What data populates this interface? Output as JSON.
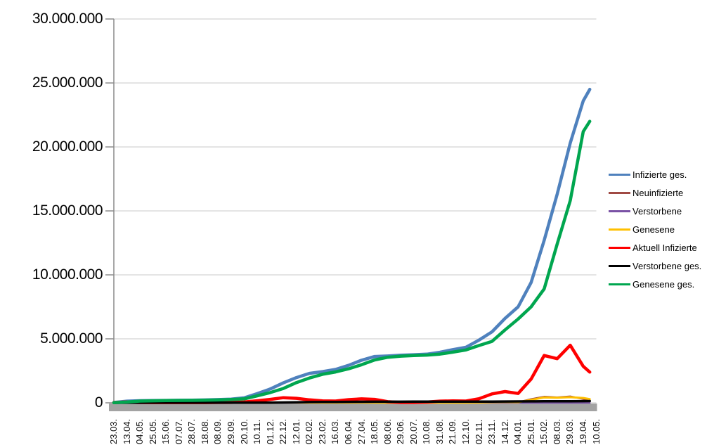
{
  "chart_data": {
    "type": "line",
    "title": "",
    "xlabel": "",
    "ylabel": "",
    "ylim": [
      0,
      30000000
    ],
    "grid": "horizontal-only",
    "legend_position": "right-middle",
    "data_end_index": 36.5,
    "y_ticks": [
      {
        "value": 0,
        "label": "0"
      },
      {
        "value": 5000000,
        "label": "5.000.000"
      },
      {
        "value": 10000000,
        "label": "10.000.000"
      },
      {
        "value": 15000000,
        "label": "15.000.000"
      },
      {
        "value": 20000000,
        "label": "20.000.000"
      },
      {
        "value": 25000000,
        "label": "25.000.000"
      },
      {
        "value": 30000000,
        "label": "30.000.000"
      }
    ],
    "categories": [
      "23.03.",
      "13.04.",
      "04.05.",
      "25.05.",
      "15.06.",
      "07.07.",
      "28.07.",
      "18.08.",
      "08.09.",
      "29.09.",
      "20.10.",
      "10.11.",
      "01.12.",
      "22.12.",
      "12.01.",
      "02.02.",
      "23.02.",
      "16.03.",
      "06.04.",
      "27.04.",
      "18.05.",
      "08.06.",
      "29.06.",
      "20.07.",
      "10.08.",
      "31.08.",
      "21.09.",
      "12.10.",
      "02.11.",
      "23.11.",
      "14.12.",
      "04.01.",
      "25.01.",
      "15.02.",
      "08.03.",
      "29.03.",
      "19.04.",
      "10.05."
    ],
    "series": [
      {
        "name": "Infizierte ges.",
        "color": "#4F81BD",
        "width": 4.5,
        "values": [
          30000,
          130000,
          163000,
          180000,
          188000,
          197000,
          207000,
          226000,
          255000,
          292000,
          390000,
          720000,
          1080000,
          1560000,
          1970000,
          2300000,
          2440000,
          2610000,
          2930000,
          3330000,
          3620000,
          3660000,
          3720000,
          3760000,
          3800000,
          3950000,
          4160000,
          4340000,
          4900000,
          5550000,
          6600000,
          7500000,
          9400000,
          12700000,
          16300000,
          20300000,
          23600000,
          24500000
        ]
      },
      {
        "name": "Neuinfizierte",
        "color": "#A04A44",
        "width": 2.5,
        "values": [
          4000,
          5000,
          1800,
          700,
          400,
          400,
          600,
          1200,
          1800,
          2800,
          8000,
          20000,
          20000,
          28000,
          20000,
          11000,
          8000,
          13000,
          22000,
          21000,
          9000,
          3000,
          1200,
          2200,
          6000,
          11000,
          10000,
          9000,
          32000,
          62000,
          55000,
          45000,
          290000,
          480000,
          430000,
          500000,
          300000,
          110000
        ]
      },
      {
        "name": "Verstorbene",
        "color": "#7A52A5",
        "width": 2.5,
        "values": [
          80,
          220,
          160,
          70,
          35,
          25,
          28,
          35,
          40,
          55,
          120,
          350,
          600,
          850,
          950,
          750,
          480,
          300,
          280,
          260,
          190,
          110,
          60,
          50,
          65,
          90,
          95,
          105,
          160,
          320,
          420,
          380,
          310,
          260,
          310,
          320,
          260,
          160
        ]
      },
      {
        "name": "Genesene",
        "color": "#FFC000",
        "width": 3,
        "values": [
          1500,
          4500,
          2800,
          1100,
          600,
          450,
          550,
          1000,
          1600,
          2400,
          6000,
          16000,
          20000,
          26000,
          23000,
          14000,
          9000,
          11000,
          19000,
          21000,
          12000,
          5000,
          1700,
          1800,
          5000,
          10000,
          10500,
          9500,
          24000,
          52000,
          58000,
          52000,
          230000,
          420000,
          400000,
          440000,
          380000,
          290000
        ]
      },
      {
        "name": "Aktuell Infizierte",
        "color": "#FF0000",
        "width": 4.5,
        "values": [
          20000,
          65000,
          30000,
          14000,
          9000,
          9000,
          12000,
          17000,
          25000,
          32000,
          72000,
          160000,
          270000,
          400000,
          350000,
          230000,
          150000,
          140000,
          250000,
          310000,
          270000,
          90000,
          25000,
          25000,
          60000,
          130000,
          150000,
          140000,
          320000,
          700000,
          880000,
          730000,
          1850000,
          3700000,
          3450000,
          4500000,
          2850000,
          2400000
        ]
      },
      {
        "name": "Verstorbene ges.",
        "color": "#000000",
        "width": 3.5,
        "values": [
          1000,
          3200,
          7000,
          8400,
          8900,
          9100,
          9200,
          9300,
          9350,
          9500,
          9900,
          12000,
          17000,
          27000,
          43000,
          59000,
          69000,
          74000,
          78000,
          82500,
          86500,
          89000,
          90500,
          91500,
          92000,
          92300,
          93000,
          94200,
          95800,
          99000,
          105000,
          112000,
          117500,
          120500,
          124500,
          128500,
          132000,
          136000
        ]
      },
      {
        "name": "Genesene ges.",
        "color": "#00A64F",
        "width": 4.5,
        "values": [
          10000,
          60000,
          137000,
          162000,
          175000,
          185000,
          194000,
          208000,
          228000,
          258000,
          310000,
          550000,
          800000,
          1120000,
          1580000,
          1940000,
          2230000,
          2410000,
          2660000,
          2980000,
          3350000,
          3560000,
          3650000,
          3690000,
          3730000,
          3810000,
          3960000,
          4130000,
          4480000,
          4800000,
          5700000,
          6550000,
          7500000,
          8900000,
          12400000,
          15800000,
          21200000,
          22000000
        ]
      }
    ],
    "colors": {
      "gridline": "#C9C9C9",
      "axis_line": "#8C8C8C",
      "axis_bar": "#A3A3A3",
      "background": "#FFFFFF",
      "text": "#000000"
    }
  }
}
